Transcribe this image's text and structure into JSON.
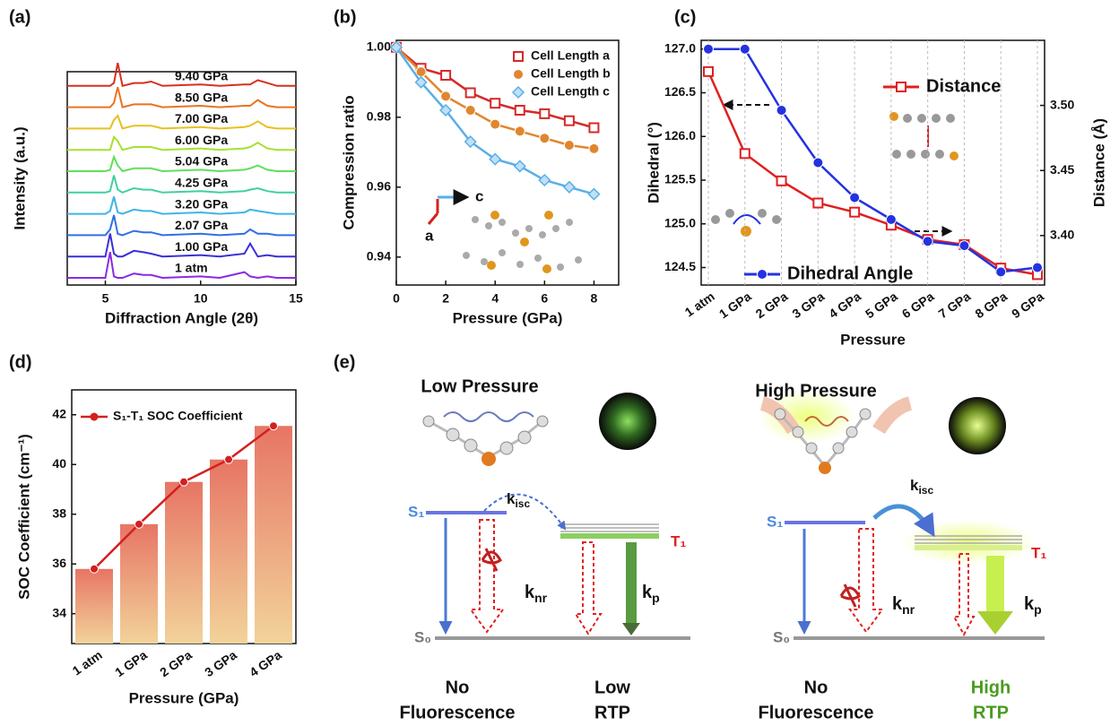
{
  "panels": [
    "(a)",
    "(b)",
    "(c)",
    "(d)",
    "(e)"
  ],
  "chart_data": [
    {
      "type": "line",
      "x_label": "Diffraction Angle (2θ)",
      "y_label": "Intensity (a.u.)",
      "xlim": [
        3,
        15
      ],
      "xticks": [
        5,
        10,
        15
      ],
      "x": [
        3,
        5,
        5.25,
        5.45,
        5.65,
        5.9,
        6.5,
        7.0,
        7.4,
        8,
        10,
        11,
        12.3,
        12.6,
        13,
        13.5,
        14,
        15
      ],
      "series": [
        {
          "name": "1 atm",
          "color": "#8a2be2",
          "values": [
            0,
            0,
            18,
            1,
            0,
            0,
            3,
            2,
            2,
            0,
            1,
            0,
            4,
            1,
            0,
            1,
            0,
            0
          ]
        },
        {
          "name": "1.00 GPa",
          "color": "#3a2fd8",
          "values": [
            0,
            0,
            16,
            2,
            0,
            0,
            4,
            3,
            2,
            0,
            1,
            0,
            2,
            9,
            0,
            1,
            0,
            0
          ]
        },
        {
          "name": "2.07 GPa",
          "color": "#2f6fe8",
          "values": [
            0,
            0,
            4,
            14,
            1,
            0,
            3,
            2,
            2,
            0,
            1,
            0,
            1,
            4,
            1,
            1,
            0,
            0
          ]
        },
        {
          "name": "3.20 GPa",
          "color": "#3fb4e6",
          "values": [
            0,
            0,
            2,
            12,
            1,
            0,
            3,
            2,
            2,
            0,
            1,
            0,
            1,
            3,
            2,
            1,
            0,
            0
          ]
        },
        {
          "name": "4.25 GPa",
          "color": "#3fd0a0",
          "values": [
            0,
            0,
            1,
            12,
            2,
            0,
            3,
            2,
            2,
            0,
            1,
            0,
            1,
            2,
            3,
            1,
            0,
            0
          ]
        },
        {
          "name": "5.04 GPa",
          "color": "#5fe05a",
          "values": [
            0,
            0,
            1,
            10,
            4,
            0,
            2,
            2,
            2,
            0,
            1,
            0,
            1,
            2,
            4,
            1,
            0,
            0
          ]
        },
        {
          "name": "6.00 GPa",
          "color": "#a8e030",
          "values": [
            0,
            0,
            0,
            9,
            6,
            0,
            2,
            2,
            2,
            0,
            1,
            0,
            1,
            2,
            5,
            1,
            0,
            0
          ]
        },
        {
          "name": "7.00 GPa",
          "color": "#e8c020",
          "values": [
            0,
            0,
            0,
            6,
            9,
            0,
            2,
            2,
            2,
            0,
            1,
            0,
            1,
            2,
            5,
            1,
            0,
            0
          ]
        },
        {
          "name": "8.50 GPa",
          "color": "#e87420",
          "values": [
            0,
            0,
            0,
            3,
            14,
            0,
            2,
            2,
            2,
            0,
            1,
            0,
            1,
            1,
            5,
            1,
            0,
            0
          ]
        },
        {
          "name": "9.40 GPa",
          "color": "#d6301e",
          "values": [
            0,
            0,
            0,
            2,
            16,
            0,
            2,
            2,
            3,
            0,
            1,
            0,
            1,
            1,
            4,
            2,
            0,
            0
          ]
        }
      ]
    },
    {
      "type": "scatter",
      "x_label": "Pressure (GPa)",
      "y_label": "Compression ratio",
      "xlim": [
        0,
        9
      ],
      "xticks": [
        0,
        2,
        4,
        6,
        8
      ],
      "ylim": [
        0.932,
        1.002
      ],
      "yticks": [
        0.94,
        0.96,
        0.98,
        {
          "value": 1.0,
          "label": "1.00"
        }
      ],
      "annotations": [
        "c",
        "a"
      ],
      "x": [
        0,
        1,
        2,
        3,
        4,
        5,
        6,
        7,
        8
      ],
      "series": [
        {
          "name": "Cell Length a",
          "color": "#d42a2a",
          "marker": "square",
          "values": [
            1.0,
            0.994,
            0.992,
            0.987,
            0.984,
            0.982,
            0.981,
            0.979,
            0.977
          ]
        },
        {
          "name": "Cell Length b",
          "color": "#e0862e",
          "marker": "circle",
          "values": [
            1.0,
            0.993,
            0.986,
            0.982,
            0.978,
            0.976,
            0.974,
            0.972,
            0.971
          ]
        },
        {
          "name": "Cell Length c",
          "color": "#5aaee8",
          "marker": "diamond",
          "values": [
            1.0,
            0.99,
            0.982,
            0.973,
            0.968,
            0.966,
            0.962,
            0.96,
            0.958
          ]
        }
      ]
    },
    {
      "type": "line",
      "x_label": "Pressure",
      "y_label": "Dihedral (°)",
      "y2_label": "Distance (Å)",
      "categories": [
        "1 atm",
        "1 GPa",
        "2 GPa",
        "3 GPa",
        "4 GPa",
        "5 GPa",
        "6 GPa",
        "7 GPa",
        "8 GPa",
        "9 GPa"
      ],
      "ylim": [
        124.3,
        127.1
      ],
      "yticks": [
        124.5,
        {
          "value": 125,
          "label": "125.0"
        },
        125.5,
        {
          "value": 126,
          "label": "126.0"
        },
        126.5,
        {
          "value": 127,
          "label": "127.0"
        }
      ],
      "y2lim": [
        3.362,
        3.55
      ],
      "y2ticks": [
        {
          "value": 3.4,
          "label": "3.40"
        },
        3.45,
        {
          "value": 3.5,
          "label": "3.50"
        }
      ],
      "grid": true,
      "series": [
        {
          "name": "Distance",
          "color": "#e02020",
          "marker": "square",
          "axis": "y2",
          "values": [
            3.526,
            3.463,
            3.442,
            3.425,
            3.418,
            3.408,
            3.397,
            3.393,
            3.375,
            3.37
          ]
        },
        {
          "name": "Dihedral Angle",
          "color": "#2432e0",
          "marker": "circle",
          "values": [
            127.0,
            127.0,
            126.3,
            125.7,
            125.3,
            125.05,
            124.8,
            124.75,
            124.45,
            124.5
          ]
        }
      ]
    },
    {
      "type": "bar",
      "x_label": "Pressure (GPa)",
      "y_label": "SOC Coefficient (cm⁻¹)",
      "categories": [
        "1 atm",
        "1 GPa",
        "2 GPa",
        "3 GPa",
        "4 GPa"
      ],
      "ylim": [
        32.8,
        43.0
      ],
      "yticks": [
        34,
        36,
        38,
        40,
        42
      ],
      "values": [
        35.8,
        37.6,
        39.3,
        40.2,
        41.55
      ],
      "series": [
        {
          "name": "S₁-T₁ SOC Coefficient",
          "color": "#d42020",
          "values": [
            35.8,
            37.6,
            39.3,
            40.2,
            41.55
          ]
        }
      ]
    }
  ],
  "diagram": {
    "states": [
      "S₀",
      "S₁",
      "T₁"
    ],
    "rates": [
      {
        "main": "k",
        "sub": "isc"
      },
      {
        "main": "k",
        "sub": "nr"
      },
      {
        "main": "k",
        "sub": "p"
      }
    ],
    "schemes": [
      {
        "title": "Low Pressure",
        "outcomes": [
          [
            "No",
            "Fluorescence"
          ],
          [
            "Low",
            "RTP"
          ]
        ]
      },
      {
        "title": "High Pressure",
        "outcomes": [
          [
            "No",
            "Fluorescence"
          ],
          [
            "High",
            "RTP"
          ]
        ]
      }
    ]
  }
}
